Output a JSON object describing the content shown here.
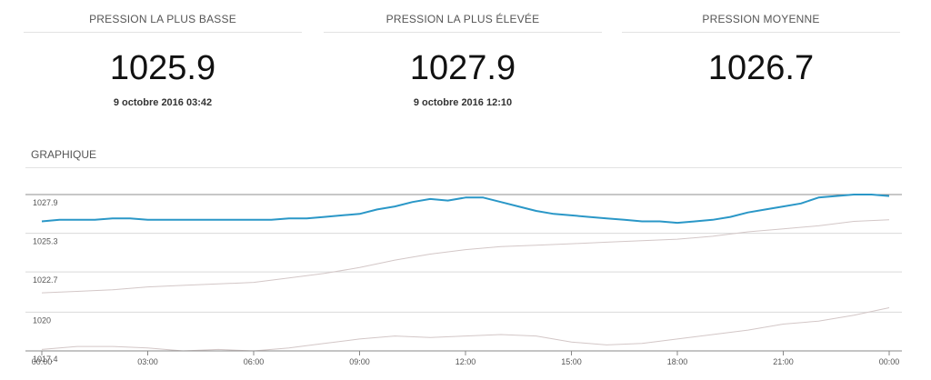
{
  "stats": [
    {
      "label": "PRESSION LA PLUS BASSE",
      "value": "1025.9",
      "date": "9 octobre 2016 03:42"
    },
    {
      "label": "PRESSION LA PLUS ÉLEVÉE",
      "value": "1027.9",
      "date": "9 octobre 2016 12:10"
    },
    {
      "label": "PRESSION MOYENNE",
      "value": "1026.7",
      "date": ""
    }
  ],
  "section_title": "GRAPHIQUE",
  "colors": {
    "main_series": "#2a97c7",
    "secondary_series": "#d3c7c7",
    "grid": "#d9d9d9",
    "top_line": "#8f8f8f"
  },
  "chart_data": {
    "type": "line",
    "xlabel": "",
    "ylabel": "",
    "x_ticks": [
      "00:00",
      "03:00",
      "06:00",
      "09:00",
      "12:00",
      "15:00",
      "18:00",
      "21:00",
      "00:00"
    ],
    "y_ticks": [
      "1027.9",
      "1025.3",
      "1022.7",
      "1020",
      "1017.4"
    ],
    "ylim": [
      1017.4,
      1027.9
    ],
    "xlim_hours": [
      0,
      24
    ],
    "grid": true,
    "series": [
      {
        "name": "",
        "role": "main",
        "x": [
          0,
          0.5,
          1,
          1.5,
          2,
          2.5,
          3,
          3.5,
          4,
          4.5,
          5,
          5.5,
          6,
          6.5,
          7,
          7.5,
          8,
          8.5,
          9,
          9.5,
          10,
          10.5,
          11,
          11.5,
          12,
          12.5,
          13,
          13.5,
          14,
          14.5,
          15,
          15.5,
          16,
          16.5,
          17,
          17.5,
          18,
          18.5,
          19,
          19.5,
          20,
          20.5,
          21,
          21.5,
          22,
          22.5,
          23,
          23.5,
          24
        ],
        "values": [
          1026.1,
          1026.2,
          1026.2,
          1026.2,
          1026.3,
          1026.3,
          1026.2,
          1026.2,
          1026.2,
          1026.2,
          1026.2,
          1026.2,
          1026.2,
          1026.2,
          1026.3,
          1026.3,
          1026.4,
          1026.5,
          1026.6,
          1026.9,
          1027.1,
          1027.4,
          1027.6,
          1027.5,
          1027.7,
          1027.7,
          1027.4,
          1027.1,
          1026.8,
          1026.6,
          1026.5,
          1026.4,
          1026.3,
          1026.2,
          1026.1,
          1026.1,
          1026.0,
          1026.1,
          1026.2,
          1026.4,
          1026.7,
          1026.9,
          1027.1,
          1027.3,
          1027.7,
          1027.8,
          1027.9,
          1027.9,
          1027.8
        ]
      },
      {
        "name": "",
        "role": "secondary",
        "x": [
          0,
          1,
          2,
          3,
          4,
          5,
          6,
          7,
          8,
          9,
          10,
          11,
          12,
          13,
          14,
          15,
          16,
          17,
          18,
          19,
          20,
          21,
          22,
          23,
          24
        ],
        "values": [
          1021.3,
          1021.4,
          1021.5,
          1021.7,
          1021.8,
          1021.9,
          1022.0,
          1022.3,
          1022.6,
          1023.0,
          1023.5,
          1023.9,
          1024.2,
          1024.4,
          1024.5,
          1024.6,
          1024.7,
          1024.8,
          1024.9,
          1025.1,
          1025.4,
          1025.6,
          1025.8,
          1026.1,
          1026.2
        ]
      },
      {
        "name": "",
        "role": "secondary",
        "x": [
          0,
          1,
          2,
          3,
          4,
          5,
          6,
          7,
          8,
          9,
          10,
          11,
          12,
          13,
          14,
          15,
          16,
          17,
          18,
          19,
          20,
          21,
          22,
          23,
          24
        ],
        "values": [
          1017.5,
          1017.7,
          1017.7,
          1017.6,
          1017.4,
          1017.5,
          1017.4,
          1017.6,
          1017.9,
          1018.2,
          1018.4,
          1018.3,
          1018.4,
          1018.5,
          1018.4,
          1018.0,
          1017.8,
          1017.9,
          1018.2,
          1018.5,
          1018.8,
          1019.2,
          1019.4,
          1019.8,
          1020.3
        ]
      }
    ]
  }
}
